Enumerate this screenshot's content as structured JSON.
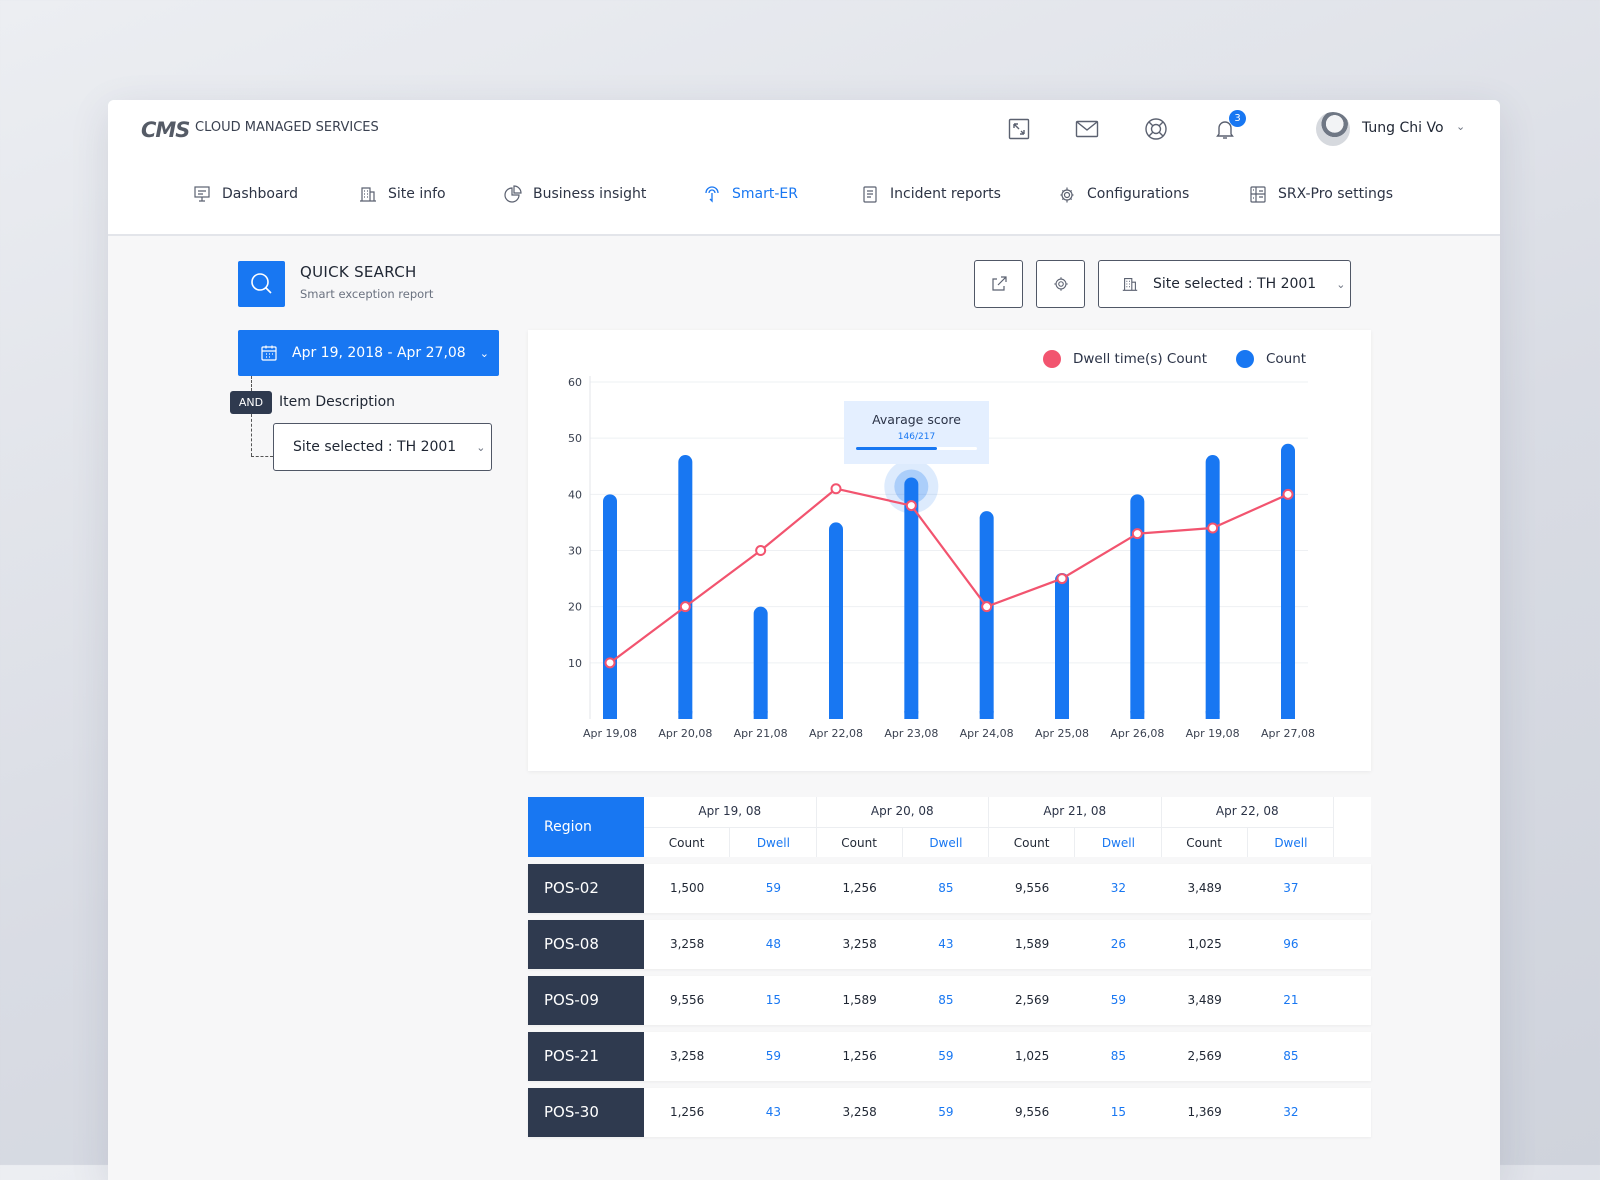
{
  "header": {
    "logo": "CMS",
    "brand": "CLOUD MANAGED SERVICES",
    "notifications_count": "3",
    "user_name": "Tung Chi Vo",
    "icons": [
      "expand-icon",
      "mail-icon",
      "support-icon",
      "bell-icon"
    ]
  },
  "nav": [
    {
      "label": "Dashboard",
      "icon": "dashboard-icon",
      "active": false
    },
    {
      "label": "Site info",
      "icon": "building-icon",
      "active": false
    },
    {
      "label": "Business insight",
      "icon": "pie-chart-icon",
      "active": false
    },
    {
      "label": "Smart-ER",
      "icon": "smart-er-icon",
      "active": true
    },
    {
      "label": "Incident reports",
      "icon": "report-icon",
      "active": false
    },
    {
      "label": "Configurations",
      "icon": "gear-icon",
      "active": false
    },
    {
      "label": "SRX-Pro settings",
      "icon": "settings-grid-icon",
      "active": false
    }
  ],
  "quick_search": {
    "title": "QUICK SEARCH",
    "subtitle": "Smart exception report",
    "date_range": "Apr 19, 2018 - Apr 27,08",
    "and_label": "AND",
    "item_description": "Item Description",
    "site_filter": "Site selected : TH 2001"
  },
  "toolbar": {
    "site_selected": "Site selected : TH 2001"
  },
  "tooltip": {
    "title": "Avarage score",
    "value": "146/217",
    "progress": 0.673
  },
  "colors": {
    "accent": "#1877f2",
    "line": "#f2546f",
    "dark": "#2f3a4f"
  },
  "chart_data": {
    "type": "bar",
    "categories": [
      "Apr 19,08",
      "Apr 20,08",
      "Apr 21,08",
      "Apr 22,08",
      "Apr 23,08",
      "Apr 24,08",
      "Apr 25,08",
      "Apr 26,08",
      "Apr 19,08",
      "Apr 27,08"
    ],
    "series": [
      {
        "name": "Count",
        "type": "bar",
        "color": "#1877f2",
        "values": [
          40,
          47,
          20,
          35,
          43,
          37,
          26,
          40,
          47,
          49
        ]
      },
      {
        "name": "Dwell time(s) Count",
        "type": "line",
        "color": "#f2546f",
        "values": [
          10,
          20,
          30,
          41,
          38,
          20,
          25,
          33,
          34,
          40
        ]
      }
    ],
    "yticks": [
      10,
      20,
      30,
      40,
      50,
      60
    ],
    "ylim": [
      0,
      60
    ],
    "highlight_index": 4,
    "legend": "top-right",
    "grid": true
  },
  "table": {
    "region_header": "Region",
    "dates": [
      "Apr 19, 08",
      "Apr 20, 08",
      "Apr 21, 08",
      "Apr 22, 08"
    ],
    "count_label": "Count",
    "dwell_label": "Dwell",
    "rows": [
      {
        "region": "POS-02",
        "cells": [
          [
            "1,500",
            "59"
          ],
          [
            "1,256",
            "85"
          ],
          [
            "9,556",
            "32"
          ],
          [
            "3,489",
            "37"
          ]
        ]
      },
      {
        "region": "POS-08",
        "cells": [
          [
            "3,258",
            "48"
          ],
          [
            "3,258",
            "43"
          ],
          [
            "1,589",
            "26"
          ],
          [
            "1,025",
            "96"
          ]
        ]
      },
      {
        "region": "POS-09",
        "cells": [
          [
            "9,556",
            "15"
          ],
          [
            "1,589",
            "85"
          ],
          [
            "2,569",
            "59"
          ],
          [
            "3,489",
            "21"
          ]
        ]
      },
      {
        "region": "POS-21",
        "cells": [
          [
            "3,258",
            "59"
          ],
          [
            "1,256",
            "59"
          ],
          [
            "1,025",
            "85"
          ],
          [
            "2,569",
            "85"
          ]
        ]
      },
      {
        "region": "POS-30",
        "cells": [
          [
            "1,256",
            "43"
          ],
          [
            "3,258",
            "59"
          ],
          [
            "9,556",
            "15"
          ],
          [
            "1,369",
            "32"
          ]
        ]
      }
    ]
  }
}
